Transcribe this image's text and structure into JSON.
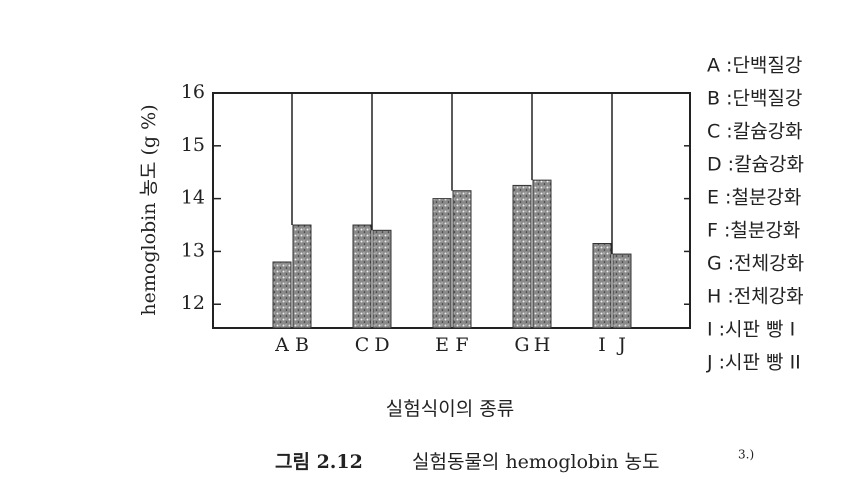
{
  "chart_data": {
    "type": "bar",
    "y_label": "hemoglobin 농도 (g %)",
    "x_label": "실험식이의 종류",
    "caption": {
      "number": "그림 2.12",
      "title": "실험동물의 hemoglobin 농도",
      "reference": "3.)"
    },
    "categories": [
      "A",
      "B",
      "C",
      "D",
      "E",
      "F",
      "G",
      "H",
      "I",
      "J"
    ],
    "values": [
      12.8,
      13.5,
      13.5,
      13.4,
      14.0,
      14.15,
      14.25,
      14.35,
      13.15,
      12.95
    ],
    "ylim": [
      11.55,
      16
    ],
    "yticks": [
      12,
      13,
      14,
      15,
      16
    ],
    "legend": [
      "A :단백질강",
      "B :단백질강",
      "C :칼슘강화",
      "D :칼슘강화",
      "E :철분강화",
      "F :철분강화",
      "G :전체강화",
      "H :전체강화",
      "I :시판 빵 I",
      "J :시판 빵 II"
    ]
  }
}
